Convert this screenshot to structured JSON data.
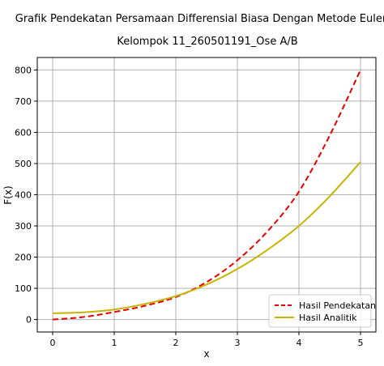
{
  "chart_data": {
    "type": "line",
    "title": "Grafik Pendekatan Persamaan Differensial Biasa Dengan Metode Euler",
    "subtitle": "Kelompok 11_260501191_Ose A/B",
    "xlabel": "x",
    "ylabel": "F(x)",
    "xlim": [
      -0.25,
      5.25
    ],
    "ylim": [
      -40,
      840
    ],
    "xticks": [
      0,
      1,
      2,
      3,
      4,
      5
    ],
    "yticks": [
      0,
      100,
      200,
      300,
      400,
      500,
      600,
      700,
      800
    ],
    "grid": true,
    "legend_position": "bottom-right",
    "series": [
      {
        "name": "Hasil Pendekatan",
        "color": "#e50000",
        "style": "dashed",
        "x": [
          0,
          0.5,
          1,
          1.5,
          2,
          2.5,
          3,
          3.5,
          4,
          4.5,
          5
        ],
        "y": [
          0,
          8,
          24,
          44,
          72,
          120,
          190,
          285,
          410,
          590,
          800
        ]
      },
      {
        "name": "Hasil Analitik",
        "color": "#c8b400",
        "style": "solid",
        "x": [
          0,
          0.5,
          1,
          1.5,
          2,
          2.5,
          3,
          3.5,
          4,
          4.5,
          5
        ],
        "y": [
          20,
          23,
          32,
          50,
          75,
          112,
          162,
          225,
          300,
          395,
          505
        ]
      }
    ]
  }
}
